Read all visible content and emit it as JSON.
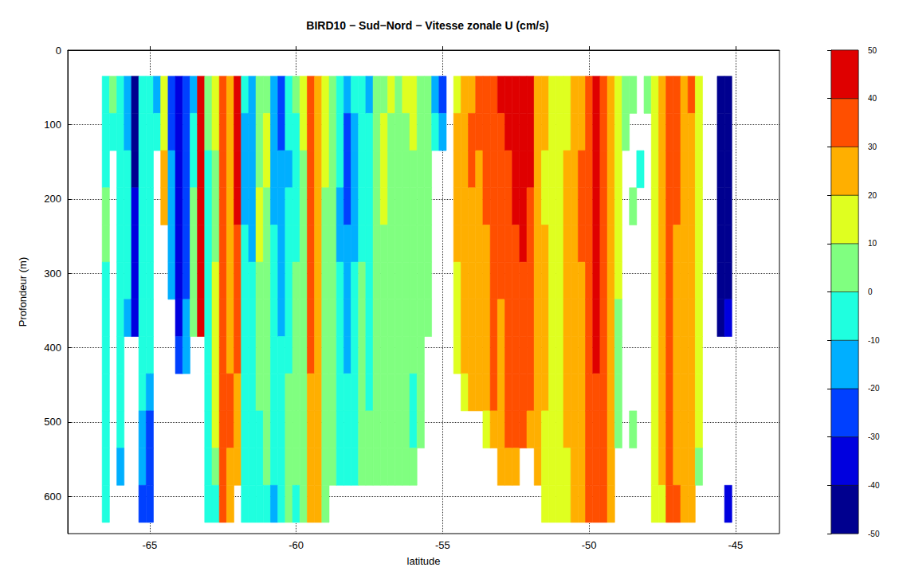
{
  "chart_data": {
    "type": "heatmap",
    "title": "BIRD10 − Sud−Nord − Vitesse zonale U (cm/s)",
    "x_label": "latitude",
    "y_label": "Profondeur (m)",
    "xlim": [
      -67.8,
      -43.5
    ],
    "xticks": [
      -65,
      -60,
      -55,
      -50,
      -45
    ],
    "ylim": [
      0,
      650
    ],
    "yticks": [
      0,
      100,
      200,
      300,
      400,
      500,
      600
    ],
    "grid": true,
    "lat": [
      -66.5,
      -66.25,
      -66,
      -65.75,
      -65.5,
      -65.25,
      -65,
      -64.75,
      -64.5,
      -64.25,
      -64,
      -63.75,
      -63.5,
      -63.25,
      -63,
      -62.75,
      -62.5,
      -62.25,
      -62,
      -61.75,
      -61.5,
      -61.25,
      -61,
      -60.75,
      -60.5,
      -60.25,
      -60,
      -59.75,
      -59.5,
      -59.25,
      -59,
      -58.75,
      -58.5,
      -58.25,
      -58,
      -57.75,
      -57.5,
      -57.25,
      -57,
      -56.75,
      -56.5,
      -56.25,
      -56,
      -55.75,
      -55.5,
      -55.25,
      -55,
      -54.75,
      -54.5,
      -54.25,
      -54,
      -53.75,
      -53.5,
      -53.25,
      -53,
      -52.75,
      -52.5,
      -52.25,
      -52,
      -51.75,
      -51.5,
      -51.25,
      -51,
      -50.75,
      -50.5,
      -50.25,
      -50,
      -49.75,
      -49.5,
      -49.25,
      -49,
      -48.75,
      -48.5,
      -48.25,
      -48,
      -47.75,
      -47.5,
      -47.25,
      -47,
      -46.75,
      -46.5,
      -46.25,
      -46,
      -45.75,
      -45.5,
      -45.25
    ],
    "depth": [
      60,
      110,
      160,
      210,
      260,
      310,
      360,
      410,
      460,
      510,
      560,
      610
    ],
    "u": [
      [
        -5,
        -5,
        -5,
        0,
        0,
        -5,
        -5,
        -5,
        -5,
        -5,
        -5,
        -5
      ],
      [
        0,
        -5,
        null,
        null,
        null,
        null,
        null,
        null,
        null,
        null,
        null,
        null
      ],
      [
        -5,
        -5,
        -5,
        -5,
        -5,
        -5,
        -5,
        -5,
        -5,
        -5,
        -15,
        null
      ],
      [
        -15,
        -15,
        -5,
        -5,
        -5,
        -5,
        -15,
        null,
        null,
        null,
        null,
        null
      ],
      [
        -45,
        -45,
        -45,
        -35,
        -35,
        -35,
        -35,
        null,
        null,
        null,
        null,
        null
      ],
      [
        -5,
        -5,
        -5,
        -5,
        -5,
        -5,
        -5,
        -5,
        -5,
        -15,
        -15,
        -25
      ],
      [
        -5,
        -5,
        -5,
        -5,
        -5,
        -5,
        -5,
        -5,
        -15,
        -25,
        -25,
        -25
      ],
      [
        -15,
        -5,
        null,
        null,
        null,
        null,
        null,
        null,
        null,
        null,
        null,
        null
      ],
      [
        15,
        15,
        25,
        25,
        null,
        null,
        null,
        null,
        null,
        null,
        null,
        null
      ],
      [
        -25,
        -25,
        -15,
        -15,
        -15,
        -15,
        null,
        null,
        null,
        null,
        null,
        null
      ],
      [
        -35,
        -35,
        -35,
        -35,
        -35,
        -35,
        -35,
        -25,
        null,
        null,
        null,
        null
      ],
      [
        -25,
        -25,
        -25,
        -25,
        -25,
        -25,
        -15,
        -15,
        null,
        null,
        null,
        null
      ],
      [
        -15,
        -5,
        -5,
        5,
        5,
        5,
        5,
        null,
        null,
        null,
        null,
        null
      ],
      [
        45,
        45,
        45,
        45,
        45,
        45,
        45,
        null,
        null,
        null,
        null,
        null
      ],
      [
        5,
        5,
        -5,
        -5,
        -5,
        -5,
        -5,
        -5,
        -5,
        -5,
        -5,
        -5
      ],
      [
        15,
        15,
        5,
        5,
        5,
        15,
        15,
        15,
        15,
        15,
        5,
        -5
      ],
      [
        35,
        35,
        35,
        35,
        35,
        35,
        35,
        35,
        35,
        35,
        35,
        35
      ],
      [
        25,
        25,
        25,
        25,
        25,
        25,
        25,
        25,
        35,
        35,
        25,
        25
      ],
      [
        45,
        45,
        45,
        45,
        35,
        35,
        35,
        35,
        25,
        25,
        25,
        null
      ],
      [
        -5,
        -15,
        -15,
        -15,
        -5,
        -5,
        -5,
        -5,
        -5,
        -5,
        -5,
        -5
      ],
      [
        -15,
        -15,
        -15,
        -15,
        -15,
        -5,
        -5,
        -5,
        -5,
        -5,
        -5,
        -5
      ],
      [
        5,
        5,
        5,
        15,
        15,
        5,
        5,
        5,
        5,
        -5,
        -5,
        -5
      ],
      [
        5,
        15,
        15,
        5,
        5,
        5,
        5,
        5,
        5,
        5,
        5,
        -5
      ],
      [
        -15,
        -15,
        -15,
        -15,
        -5,
        -5,
        -5,
        -5,
        -5,
        -5,
        -5,
        -15
      ],
      [
        -25,
        -25,
        -15,
        -15,
        -15,
        -15,
        -15,
        -5,
        -5,
        -5,
        -5,
        -5
      ],
      [
        -5,
        -5,
        -15,
        -5,
        -5,
        -5,
        -5,
        -5,
        5,
        5,
        5,
        5
      ],
      [
        5,
        -5,
        -5,
        -5,
        -5,
        5,
        5,
        5,
        5,
        5,
        5,
        -5
      ],
      [
        15,
        15,
        5,
        5,
        5,
        5,
        5,
        5,
        5,
        5,
        5,
        5
      ],
      [
        35,
        35,
        35,
        35,
        35,
        35,
        35,
        35,
        25,
        25,
        25,
        25
      ],
      [
        25,
        25,
        25,
        25,
        25,
        25,
        25,
        25,
        25,
        25,
        25,
        25
      ],
      [
        15,
        15,
        15,
        5,
        5,
        5,
        5,
        5,
        5,
        5,
        5,
        5
      ],
      [
        5,
        5,
        5,
        5,
        5,
        5,
        5,
        5,
        5,
        5,
        5,
        null
      ],
      [
        -5,
        -5,
        -5,
        -15,
        -15,
        -5,
        -5,
        -5,
        -5,
        -5,
        -5,
        null
      ],
      [
        -15,
        -25,
        -25,
        -25,
        -15,
        -15,
        -15,
        -15,
        -5,
        -5,
        -5,
        null
      ],
      [
        -5,
        -15,
        -15,
        -15,
        -15,
        -5,
        -5,
        -5,
        -5,
        -5,
        -5,
        null
      ],
      [
        -5,
        -5,
        -5,
        -5,
        -5,
        5,
        5,
        5,
        5,
        5,
        5,
        null
      ],
      [
        -15,
        -5,
        -5,
        -5,
        -5,
        -5,
        -5,
        -5,
        -5,
        5,
        5,
        null
      ],
      [
        5,
        5,
        5,
        5,
        5,
        5,
        5,
        5,
        5,
        5,
        5,
        null
      ],
      [
        5,
        15,
        15,
        15,
        5,
        5,
        5,
        5,
        5,
        5,
        5,
        null
      ],
      [
        15,
        5,
        5,
        5,
        5,
        5,
        5,
        5,
        5,
        5,
        5,
        null
      ],
      [
        5,
        5,
        5,
        5,
        5,
        5,
        5,
        5,
        5,
        5,
        5,
        null
      ],
      [
        15,
        5,
        5,
        5,
        5,
        5,
        5,
        5,
        5,
        5,
        5,
        null
      ],
      [
        15,
        15,
        5,
        5,
        5,
        5,
        5,
        5,
        -5,
        -5,
        5,
        null
      ],
      [
        5,
        5,
        5,
        5,
        5,
        5,
        5,
        5,
        5,
        5,
        null,
        null
      ],
      [
        5,
        5,
        5,
        5,
        5,
        5,
        5,
        null,
        null,
        null,
        null,
        null
      ],
      [
        -15,
        -5,
        null,
        null,
        null,
        null,
        null,
        null,
        null,
        null,
        null,
        null
      ],
      [
        -25,
        -15,
        null,
        null,
        null,
        null,
        null,
        null,
        null,
        null,
        null,
        null
      ],
      [
        null,
        null,
        null,
        null,
        null,
        null,
        null,
        null,
        null,
        null,
        null,
        null
      ],
      [
        15,
        25,
        25,
        25,
        25,
        15,
        15,
        15,
        null,
        null,
        null,
        null
      ],
      [
        25,
        25,
        25,
        25,
        25,
        25,
        25,
        25,
        15,
        null,
        null,
        null
      ],
      [
        25,
        35,
        35,
        25,
        25,
        25,
        25,
        25,
        25,
        null,
        null,
        null
      ],
      [
        35,
        35,
        25,
        25,
        25,
        25,
        25,
        25,
        25,
        null,
        null,
        null
      ],
      [
        35,
        35,
        35,
        35,
        25,
        25,
        25,
        25,
        25,
        15,
        null,
        null
      ],
      [
        35,
        35,
        35,
        35,
        35,
        35,
        35,
        35,
        35,
        25,
        null,
        null
      ],
      [
        45,
        35,
        35,
        35,
        35,
        35,
        25,
        25,
        25,
        25,
        25,
        null
      ],
      [
        45,
        45,
        35,
        35,
        35,
        35,
        35,
        35,
        35,
        35,
        25,
        null
      ],
      [
        45,
        45,
        45,
        45,
        35,
        35,
        35,
        35,
        35,
        35,
        25,
        null
      ],
      [
        48,
        45,
        45,
        45,
        45,
        35,
        35,
        35,
        35,
        35,
        null,
        null
      ],
      [
        45,
        45,
        45,
        35,
        35,
        35,
        35,
        35,
        35,
        25,
        null,
        null
      ],
      [
        25,
        25,
        25,
        25,
        25,
        25,
        25,
        25,
        25,
        25,
        25,
        null
      ],
      [
        25,
        25,
        15,
        15,
        25,
        25,
        25,
        25,
        25,
        15,
        15,
        15
      ],
      [
        15,
        15,
        15,
        15,
        15,
        15,
        15,
        15,
        15,
        15,
        15,
        15
      ],
      [
        15,
        15,
        15,
        15,
        15,
        15,
        15,
        15,
        15,
        15,
        15,
        15
      ],
      [
        15,
        15,
        25,
        25,
        25,
        25,
        25,
        25,
        25,
        25,
        15,
        15
      ],
      [
        25,
        25,
        25,
        25,
        25,
        25,
        25,
        25,
        25,
        25,
        25,
        25
      ],
      [
        25,
        25,
        35,
        35,
        35,
        25,
        25,
        25,
        25,
        25,
        25,
        25
      ],
      [
        35,
        35,
        35,
        35,
        35,
        35,
        35,
        35,
        35,
        35,
        35,
        35
      ],
      [
        45,
        45,
        45,
        45,
        45,
        45,
        45,
        45,
        35,
        35,
        35,
        35
      ],
      [
        35,
        35,
        35,
        35,
        35,
        35,
        35,
        35,
        35,
        35,
        35,
        35
      ],
      [
        25,
        25,
        25,
        25,
        25,
        25,
        25,
        25,
        25,
        25,
        25,
        25
      ],
      [
        15,
        15,
        15,
        15,
        15,
        15,
        5,
        5,
        5,
        5,
        null,
        null
      ],
      [
        5,
        5,
        null,
        null,
        null,
        null,
        null,
        null,
        null,
        null,
        null,
        null
      ],
      [
        5,
        null,
        null,
        5,
        null,
        null,
        null,
        null,
        null,
        5,
        null,
        null
      ],
      [
        null,
        null,
        -5,
        null,
        null,
        null,
        null,
        null,
        null,
        null,
        null,
        null
      ],
      [
        5,
        null,
        null,
        null,
        null,
        null,
        null,
        null,
        null,
        null,
        null,
        null
      ],
      [
        15,
        15,
        15,
        15,
        15,
        15,
        15,
        15,
        15,
        15,
        15,
        15
      ],
      [
        25,
        25,
        25,
        25,
        25,
        25,
        25,
        25,
        25,
        25,
        25,
        15
      ],
      [
        35,
        35,
        35,
        35,
        35,
        35,
        35,
        35,
        35,
        35,
        35,
        35
      ],
      [
        35,
        35,
        35,
        35,
        25,
        25,
        25,
        25,
        25,
        25,
        25,
        35
      ],
      [
        25,
        25,
        25,
        25,
        25,
        25,
        25,
        25,
        25,
        25,
        25,
        25
      ],
      [
        35,
        25,
        25,
        25,
        25,
        25,
        25,
        25,
        25,
        25,
        25,
        25
      ],
      [
        15,
        15,
        15,
        15,
        15,
        15,
        15,
        15,
        15,
        15,
        5,
        null
      ],
      [
        null,
        null,
        null,
        null,
        null,
        null,
        null,
        null,
        null,
        null,
        null,
        null
      ],
      [
        null,
        null,
        null,
        null,
        null,
        null,
        null,
        null,
        null,
        null,
        null,
        null
      ],
      [
        -45,
        -45,
        -45,
        -45,
        -45,
        -45,
        -45,
        null,
        null,
        null,
        null,
        null
      ],
      [
        -45,
        -45,
        -45,
        -45,
        -45,
        -45,
        -35,
        null,
        null,
        null,
        null,
        -35
      ]
    ],
    "colorbar": {
      "range": [
        -50,
        50
      ],
      "ticks": [
        -50,
        -40,
        -30,
        -20,
        -10,
        0,
        10,
        20,
        30,
        40,
        50
      ],
      "colors": [
        "#00008f",
        "#0000df",
        "#0040ff",
        "#00afff",
        "#1fffdf",
        "#80ff80",
        "#dfff20",
        "#ffaf00",
        "#ff4f00",
        "#df0000"
      ]
    }
  }
}
